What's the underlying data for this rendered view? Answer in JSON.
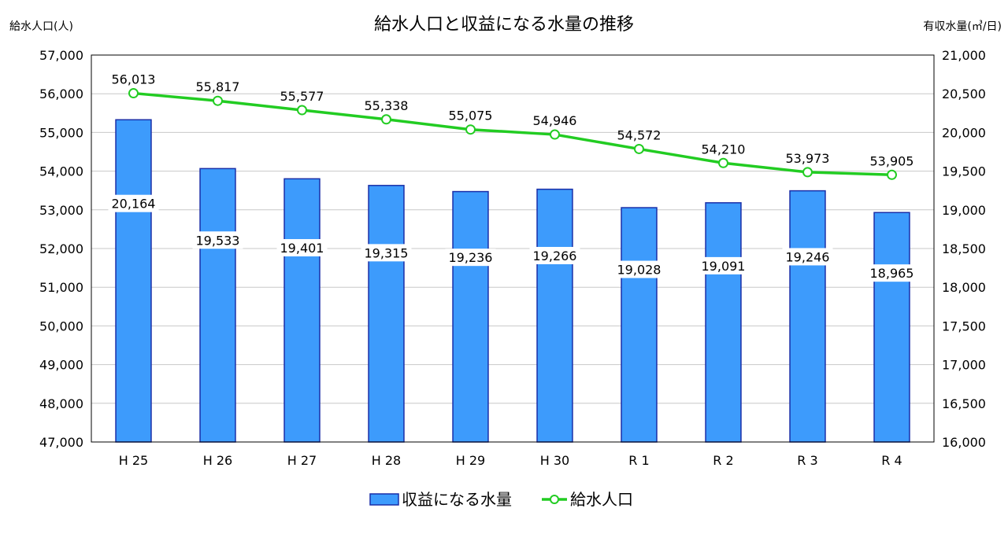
{
  "chart_data": {
    "type": "bar+line",
    "title": "給水人口と収益になる水量の推移",
    "left_axis_label": "給水人口(人)",
    "right_axis_label": "有収水量(㎥/日)",
    "categories": [
      "H 25",
      "H 26",
      "H 27",
      "H 28",
      "H 29",
      "H 30",
      "R 1",
      "R 2",
      "R 3",
      "R 4"
    ],
    "left_axis": {
      "ylim": [
        47000,
        57000
      ],
      "ticks": [
        "47,000",
        "48,000",
        "49,000",
        "50,000",
        "51,000",
        "52,000",
        "53,000",
        "54,000",
        "55,000",
        "56,000",
        "57,000"
      ]
    },
    "right_axis": {
      "ylim": [
        16000,
        21000
      ],
      "ticks": [
        "16,000",
        "16,500",
        "17,000",
        "17,500",
        "18,000",
        "18,500",
        "19,000",
        "19,500",
        "20,000",
        "20,500",
        "21,000"
      ]
    },
    "series": [
      {
        "name": "収益になる水量",
        "type": "bar",
        "axis": "right",
        "color": "#3d9bfc",
        "values": [
          20164,
          19533,
          19401,
          19315,
          19236,
          19266,
          19028,
          19091,
          19246,
          18965
        ],
        "labels": [
          "20,164",
          "19,533",
          "19,401",
          "19,315",
          "19,236",
          "19,266",
          "19,028",
          "19,091",
          "19,246",
          "18,965"
        ]
      },
      {
        "name": "給水人口",
        "type": "line",
        "axis": "left",
        "color": "#22cc22",
        "values": [
          56013,
          55817,
          55577,
          55338,
          55075,
          54946,
          54572,
          54210,
          53973,
          53905
        ],
        "labels": [
          "56,013",
          "55,817",
          "55,577",
          "55,338",
          "55,075",
          "54,946",
          "54,572",
          "54,210",
          "53,973",
          "53,905"
        ]
      }
    ],
    "grid": true,
    "legend": "bottom"
  }
}
